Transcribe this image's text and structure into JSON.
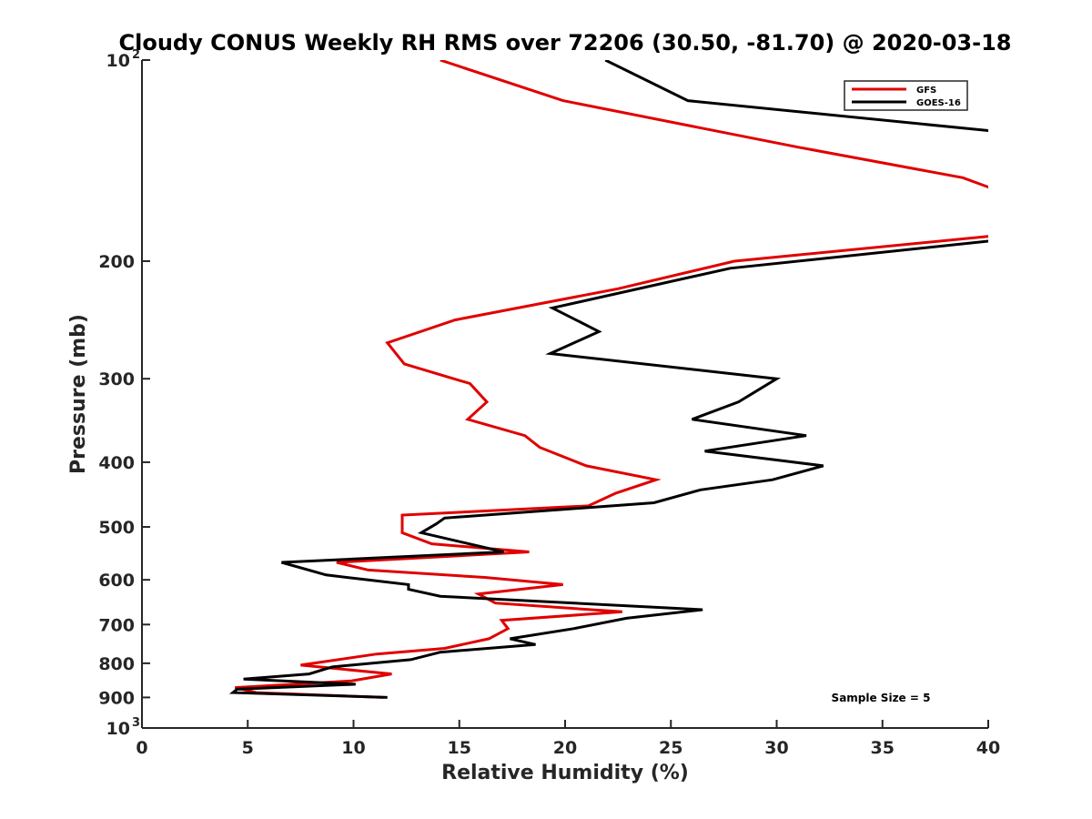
{
  "chart_data": {
    "type": "line",
    "title": "Cloudy CONUS Weekly RH RMS over 72206 (30.50, -81.70) @ 2020-03-18",
    "xlabel": "Relative Humidity (%)",
    "ylabel": "Pressure (mb)",
    "xlim": [
      0,
      40
    ],
    "ylim": [
      100,
      1000
    ],
    "yscale": "log",
    "y_direction": "reversed",
    "x_ticks": [
      0,
      5,
      10,
      15,
      20,
      25,
      30,
      35,
      40
    ],
    "x_tick_labels": [
      "0",
      "5",
      "10",
      "15",
      "20",
      "25",
      "30",
      "35",
      "40"
    ],
    "y_ticks": [
      {
        "value": 100,
        "base": "10",
        "exp": "2"
      },
      {
        "value": 200,
        "label": "200"
      },
      {
        "value": 300,
        "label": "300"
      },
      {
        "value": 400,
        "label": "400"
      },
      {
        "value": 500,
        "label": "500"
      },
      {
        "value": 600,
        "label": "600"
      },
      {
        "value": 700,
        "label": "700"
      },
      {
        "value": 800,
        "label": "800"
      },
      {
        "value": 900,
        "label": "900"
      },
      {
        "value": 1000,
        "base": "10",
        "exp": "3"
      }
    ],
    "legend_position": "top-right",
    "series": [
      {
        "name": "GFS",
        "color": "#e00000",
        "points": [
          [
            14.1,
            100
          ],
          [
            19.9,
            115
          ],
          [
            31.0,
            135
          ],
          [
            38.8,
            150
          ],
          [
            40.5,
            157
          ],
          [
            40.5,
            183
          ],
          [
            28.0,
            200
          ],
          [
            22.5,
            220
          ],
          [
            14.8,
            245
          ],
          [
            11.6,
            265
          ],
          [
            12.4,
            285
          ],
          [
            15.5,
            305
          ],
          [
            16.3,
            325
          ],
          [
            15.4,
            345
          ],
          [
            18.1,
            365
          ],
          [
            18.8,
            380
          ],
          [
            21.0,
            405
          ],
          [
            24.3,
            425
          ],
          [
            22.4,
            445
          ],
          [
            21.1,
            465
          ],
          [
            12.3,
            480
          ],
          [
            12.3,
            510
          ],
          [
            13.7,
            530
          ],
          [
            18.3,
            545
          ],
          [
            9.2,
            565
          ],
          [
            10.7,
            580
          ],
          [
            16.2,
            595
          ],
          [
            19.9,
            610
          ],
          [
            15.9,
            630
          ],
          [
            16.7,
            650
          ],
          [
            22.7,
            670
          ],
          [
            17.0,
            690
          ],
          [
            17.3,
            710
          ],
          [
            16.4,
            735
          ],
          [
            14.3,
            760
          ],
          [
            11.1,
            775
          ],
          [
            7.5,
            805
          ],
          [
            11.8,
            830
          ],
          [
            9.9,
            850
          ],
          [
            4.4,
            870
          ],
          [
            5.4,
            885
          ],
          [
            11.4,
            900
          ]
        ]
      },
      {
        "name": "GOES-16",
        "color": "#000000",
        "points": [
          [
            21.9,
            100
          ],
          [
            25.8,
            115
          ],
          [
            40.5,
            128
          ],
          [
            40.5,
            186
          ],
          [
            27.8,
            205
          ],
          [
            19.4,
            235
          ],
          [
            21.6,
            255
          ],
          [
            19.3,
            275
          ],
          [
            30.0,
            300
          ],
          [
            28.2,
            325
          ],
          [
            26.0,
            345
          ],
          [
            31.4,
            365
          ],
          [
            26.6,
            385
          ],
          [
            32.2,
            405
          ],
          [
            29.8,
            425
          ],
          [
            26.4,
            440
          ],
          [
            24.2,
            460
          ],
          [
            14.3,
            485
          ],
          [
            13.9,
            495
          ],
          [
            13.2,
            510
          ],
          [
            17.1,
            545
          ],
          [
            6.6,
            565
          ],
          [
            8.7,
            590
          ],
          [
            12.6,
            610
          ],
          [
            12.6,
            620
          ],
          [
            14.1,
            635
          ],
          [
            26.5,
            665
          ],
          [
            22.9,
            685
          ],
          [
            20.4,
            710
          ],
          [
            17.4,
            735
          ],
          [
            18.6,
            750
          ],
          [
            14.1,
            770
          ],
          [
            12.7,
            790
          ],
          [
            9.0,
            810
          ],
          [
            7.9,
            830
          ],
          [
            4.8,
            845
          ],
          [
            10.1,
            860
          ],
          [
            4.5,
            875
          ],
          [
            4.3,
            885
          ],
          [
            11.6,
            900
          ]
        ]
      }
    ],
    "annotations": [
      "Sample Size = 5"
    ]
  }
}
